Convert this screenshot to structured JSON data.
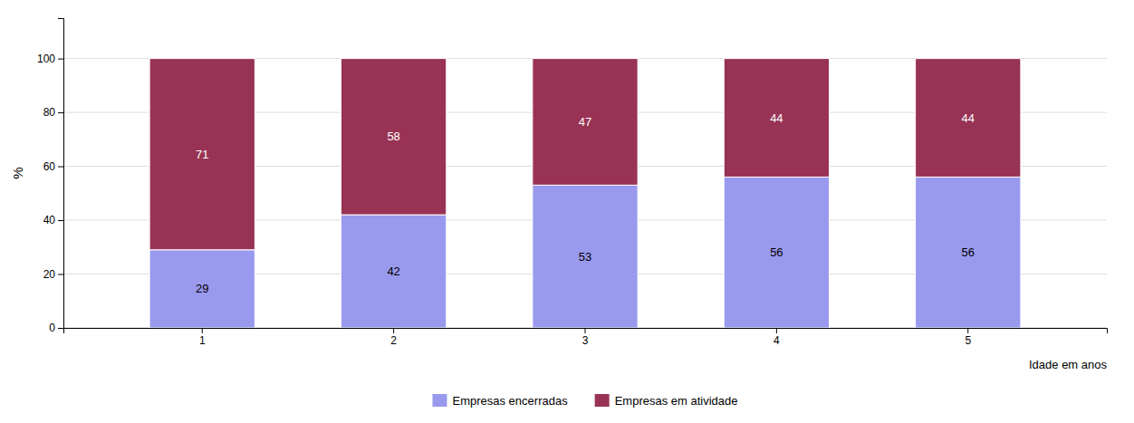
{
  "chart_data": {
    "type": "bar",
    "stacked": true,
    "data_labels": true,
    "grid": true,
    "legend": "bottom",
    "xlabel": "Idade em anos",
    "ylabel": "%",
    "categories": [
      "1",
      "2",
      "3",
      "4",
      "5"
    ],
    "series": [
      {
        "name": "Empresas encerradas",
        "color": "#9999EE",
        "values": [
          29,
          42,
          53,
          56,
          56
        ]
      },
      {
        "name": "Empresas em atividade",
        "color": "#993355",
        "values": [
          71,
          58,
          47,
          44,
          44
        ]
      }
    ],
    "ylim": [
      0,
      115
    ],
    "yticks": [
      0,
      20,
      40,
      60,
      80,
      100
    ]
  }
}
